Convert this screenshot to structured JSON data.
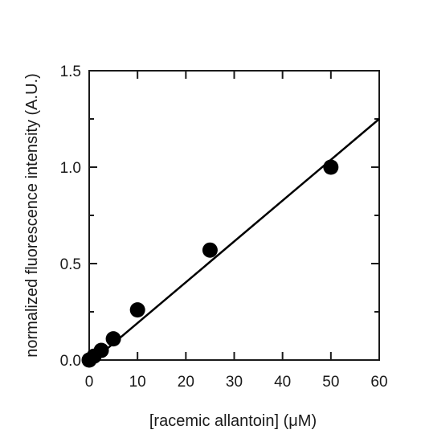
{
  "chart_data": {
    "type": "scatter",
    "xlabel": "[racemic allantoin] (μM)",
    "ylabel": "normalized fluorescence intensity (A.U.)",
    "xlim": [
      0,
      60
    ],
    "ylim": [
      0,
      1.5
    ],
    "x_ticks": [
      0,
      10,
      20,
      30,
      40,
      50,
      60
    ],
    "x_tick_labels": [
      "0",
      "10",
      "20",
      "30",
      "40",
      "50",
      "60"
    ],
    "y_ticks": [
      0,
      0.5,
      1.0,
      1.5
    ],
    "y_tick_labels": [
      "0.0",
      "0.5",
      "1.0",
      "1.5"
    ],
    "grid": false,
    "series": [
      {
        "x": [
          0,
          1,
          2.5,
          5,
          10,
          25,
          50
        ],
        "y": [
          0.0,
          0.02,
          0.05,
          0.11,
          0.26,
          0.57,
          1.0
        ]
      }
    ],
    "fit_line": {
      "x": [
        0,
        60
      ],
      "y": [
        -0.02,
        1.25
      ]
    },
    "colors": {
      "marker": "#000000",
      "line": "#000000",
      "axis": "#1a1a1a"
    }
  }
}
